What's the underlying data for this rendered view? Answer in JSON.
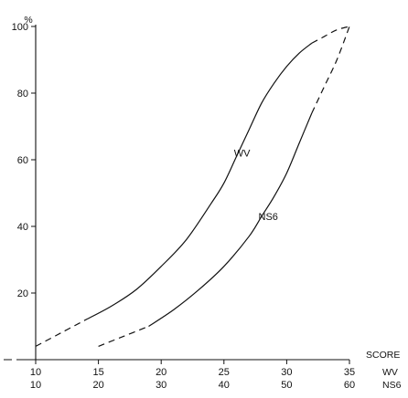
{
  "chart_data": {
    "type": "line",
    "title": "",
    "y_unit_label": "%",
    "ylim": [
      0,
      100
    ],
    "y_ticks": [
      20,
      40,
      60,
      80,
      100
    ],
    "x_axis_label": "SCORE",
    "x_scales": [
      {
        "name": "WV",
        "ticks": [
          10,
          15,
          20,
          25,
          30,
          35
        ],
        "range": [
          10,
          35
        ]
      },
      {
        "name": "NS6",
        "ticks": [
          10,
          20,
          30,
          40,
          50,
          60
        ],
        "range": [
          10,
          60
        ]
      }
    ],
    "grid": false,
    "series": [
      {
        "name": "WV",
        "x_scale": "WV",
        "label_position": {
          "x": 25.8,
          "y": 62
        },
        "points": [
          {
            "x": 10,
            "y": 4
          },
          {
            "x": 12,
            "y": 8
          },
          {
            "x": 14,
            "y": 12
          },
          {
            "x": 16,
            "y": 16
          },
          {
            "x": 18,
            "y": 21
          },
          {
            "x": 20,
            "y": 28
          },
          {
            "x": 22,
            "y": 36
          },
          {
            "x": 24,
            "y": 47
          },
          {
            "x": 25,
            "y": 53
          },
          {
            "x": 26,
            "y": 61
          },
          {
            "x": 27,
            "y": 69
          },
          {
            "x": 28,
            "y": 77
          },
          {
            "x": 29,
            "y": 83
          },
          {
            "x": 30,
            "y": 88
          },
          {
            "x": 31,
            "y": 92
          },
          {
            "x": 32,
            "y": 95
          },
          {
            "x": 33,
            "y": 97
          },
          {
            "x": 34,
            "y": 99
          },
          {
            "x": 35,
            "y": 100
          }
        ]
      },
      {
        "name": "NS6",
        "x_scale": "NS6",
        "label_position": {
          "x": 45.5,
          "y": 43
        },
        "points": [
          {
            "x": 20,
            "y": 4
          },
          {
            "x": 24,
            "y": 7
          },
          {
            "x": 28,
            "y": 10
          },
          {
            "x": 32,
            "y": 15
          },
          {
            "x": 36,
            "y": 21
          },
          {
            "x": 40,
            "y": 28
          },
          {
            "x": 44,
            "y": 37
          },
          {
            "x": 46,
            "y": 43
          },
          {
            "x": 48,
            "y": 49
          },
          {
            "x": 50,
            "y": 56
          },
          {
            "x": 52,
            "y": 65
          },
          {
            "x": 54,
            "y": 74
          },
          {
            "x": 56,
            "y": 82
          },
          {
            "x": 58,
            "y": 90
          },
          {
            "x": 60,
            "y": 100
          }
        ]
      }
    ]
  }
}
